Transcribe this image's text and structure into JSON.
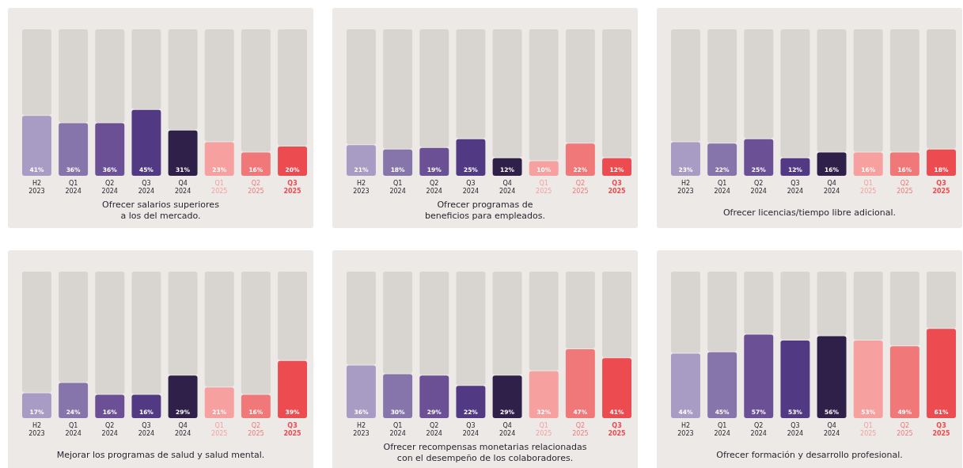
{
  "chart_data": [
    {
      "type": "bar",
      "title": "Ofrecer salarios superiores\na los del mercado.",
      "categories": [
        "H2 2023",
        "Q1 2024",
        "Q2 2024",
        "Q3 2024",
        "Q4 2024",
        "Q1 2025",
        "Q2 2025",
        "Q3 2025"
      ],
      "values": [
        41,
        36,
        36,
        45,
        31,
        23,
        16,
        20
      ],
      "value_labels": [
        "41%",
        "36%",
        "36%",
        "45%",
        "31%",
        "23%",
        "16%",
        "20%"
      ],
      "colors": [
        "#a89cc4",
        "#8575aa",
        "#6b5096",
        "#513983",
        "#2e2048",
        "#f6a0a0",
        "#f07878",
        "#ec4b50"
      ],
      "ylim": [
        0,
        100
      ],
      "tick_labels": "x"
    },
    {
      "type": "bar",
      "title": "Ofrecer programas de\nbeneficios para empleados.",
      "categories": [
        "H2 2023",
        "Q1 2024",
        "Q2 2024",
        "Q3 2024",
        "Q4 2024",
        "Q1 2025",
        "Q2 2025",
        "Q3 2025"
      ],
      "values": [
        21,
        18,
        19,
        25,
        12,
        10,
        22,
        12
      ],
      "value_labels": [
        "21%",
        "18%",
        "19%",
        "25%",
        "12%",
        "10%",
        "22%",
        "12%"
      ],
      "colors": [
        "#a89cc4",
        "#8575aa",
        "#6b5096",
        "#513983",
        "#2e2048",
        "#f6a0a0",
        "#f07878",
        "#ec4b50"
      ],
      "ylim": [
        0,
        100
      ],
      "tick_labels": "x"
    },
    {
      "type": "bar",
      "title": "Ofrecer licencias/tiempo libre adicional.",
      "categories": [
        "H2 2023",
        "Q1 2024",
        "Q2 2024",
        "Q3 2024",
        "Q4 2024",
        "Q1 2025",
        "Q2 2025",
        "Q3 2025"
      ],
      "values": [
        23,
        22,
        25,
        12,
        16,
        16,
        16,
        18
      ],
      "value_labels": [
        "23%",
        "22%",
        "25%",
        "12%",
        "16%",
        "16%",
        "16%",
        "18%"
      ],
      "colors": [
        "#a89cc4",
        "#8575aa",
        "#6b5096",
        "#513983",
        "#2e2048",
        "#f6a0a0",
        "#f07878",
        "#ec4b50"
      ],
      "ylim": [
        0,
        100
      ],
      "tick_labels": "x"
    },
    {
      "type": "bar",
      "title": "Mejorar los programas de salud y salud mental.",
      "categories": [
        "H2 2023",
        "Q1 2024",
        "Q2 2024",
        "Q3 2024",
        "Q4 2024",
        "Q1 2025",
        "Q2 2025",
        "Q3 2025"
      ],
      "values": [
        17,
        24,
        16,
        16,
        29,
        21,
        16,
        39
      ],
      "value_labels": [
        "17%",
        "24%",
        "16%",
        "16%",
        "29%",
        "21%",
        "16%",
        "39%"
      ],
      "colors": [
        "#a89cc4",
        "#8575aa",
        "#6b5096",
        "#513983",
        "#2e2048",
        "#f6a0a0",
        "#f07878",
        "#ec4b50"
      ],
      "ylim": [
        0,
        100
      ],
      "tick_labels": "x"
    },
    {
      "type": "bar",
      "title": "Ofrecer recompensas monetarias relacionadas\ncon el desempeño de los colaboradores.",
      "categories": [
        "H2 2023",
        "Q1 2024",
        "Q2 2024",
        "Q3 2024",
        "Q4 2024",
        "Q1 2025",
        "Q2 2025",
        "Q3 2025"
      ],
      "values": [
        36,
        30,
        29,
        22,
        29,
        32,
        47,
        41
      ],
      "value_labels": [
        "36%",
        "30%",
        "29%",
        "22%",
        "29%",
        "32%",
        "47%",
        "41%"
      ],
      "colors": [
        "#a89cc4",
        "#8575aa",
        "#6b5096",
        "#513983",
        "#2e2048",
        "#f6a0a0",
        "#f07878",
        "#ec4b50"
      ],
      "ylim": [
        0,
        100
      ],
      "tick_labels": "x"
    },
    {
      "type": "bar",
      "title": "Ofrecer formación y desarrollo profesional.",
      "categories": [
        "H2 2023",
        "Q1 2024",
        "Q2 2024",
        "Q3 2024",
        "Q4 2024",
        "Q1 2025",
        "Q2 2025",
        "Q3 2025"
      ],
      "values": [
        44,
        45,
        57,
        53,
        56,
        53,
        49,
        61
      ],
      "value_labels": [
        "44%",
        "45%",
        "57%",
        "53%",
        "56%",
        "53%",
        "49%",
        "61%"
      ],
      "colors": [
        "#a89cc4",
        "#8575aa",
        "#6b5096",
        "#513983",
        "#2e2048",
        "#f6a0a0",
        "#f07878",
        "#ec4b50"
      ],
      "ylim": [
        0,
        100
      ],
      "tick_labels": "x"
    }
  ]
}
